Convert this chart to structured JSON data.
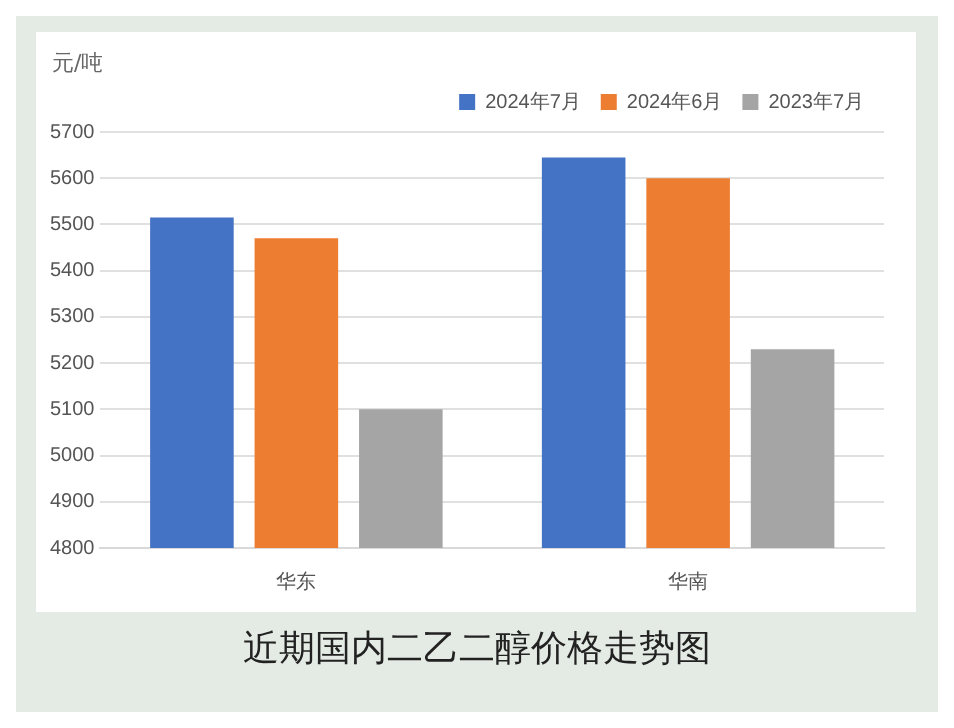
{
  "chart_data": {
    "type": "bar",
    "ylabel": "元/吨",
    "categories": [
      "华东",
      "华南"
    ],
    "series": [
      {
        "name": "2024年7月",
        "color": "#4472c4",
        "values": [
          5515,
          5645
        ]
      },
      {
        "name": "2024年6月",
        "color": "#ed7d31",
        "values": [
          5470,
          5600
        ]
      },
      {
        "name": "2023年7月",
        "color": "#a5a5a5",
        "values": [
          5100,
          5230
        ]
      }
    ],
    "ylim": [
      4800,
      5700
    ],
    "yticks": [
      4800,
      4900,
      5000,
      5100,
      5200,
      5300,
      5400,
      5500,
      5600,
      5700
    ],
    "grid": "y",
    "legend": "top right",
    "annotations": [
      "近期国内二乙二醇价格走势图"
    ]
  }
}
